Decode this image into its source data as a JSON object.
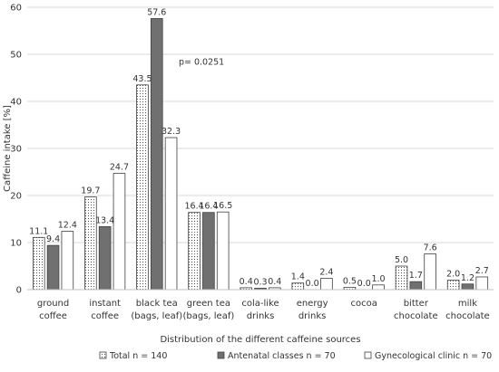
{
  "chart_data": {
    "type": "bar",
    "categories": [
      [
        "ground",
        "coffee"
      ],
      [
        "instant",
        "coffee"
      ],
      [
        "black tea",
        "(bags, leaf)"
      ],
      [
        "green tea",
        "(bags, leaf)"
      ],
      [
        "cola-like",
        "drinks"
      ],
      [
        "energy",
        "drinks"
      ],
      [
        "cocoa"
      ],
      [
        "bitter",
        "chocolate"
      ],
      [
        "milk",
        "chocolate"
      ]
    ],
    "series": [
      {
        "name": "Total  n = 140",
        "values": [
          11.1,
          19.7,
          43.5,
          16.4,
          0.4,
          1.4,
          0.5,
          5.0,
          2.0
        ],
        "pattern": "dots",
        "color": "#ffffff"
      },
      {
        "name": "Antenatal classes  n = 70",
        "values": [
          9.4,
          13.4,
          57.6,
          16.4,
          0.3,
          0.0,
          0.0,
          1.7,
          1.2
        ],
        "pattern": "solid",
        "color": "#707070"
      },
      {
        "name": "Gynecological clinic  n = 70",
        "values": [
          12.4,
          24.7,
          32.3,
          16.5,
          0.4,
          2.4,
          1.0,
          7.6,
          2.7
        ],
        "pattern": "none",
        "color": "#ffffff"
      }
    ],
    "annotation": {
      "text": "p= 0.0251",
      "category": 2
    },
    "title": "",
    "xlabel": "Distribution of the different caffeine sources",
    "ylabel": "Caffeine intake [%]",
    "ylim": [
      0,
      60
    ],
    "yticks": [
      0,
      10,
      20,
      30,
      40,
      50,
      60
    ],
    "grid": true,
    "legend": "bottom"
  }
}
